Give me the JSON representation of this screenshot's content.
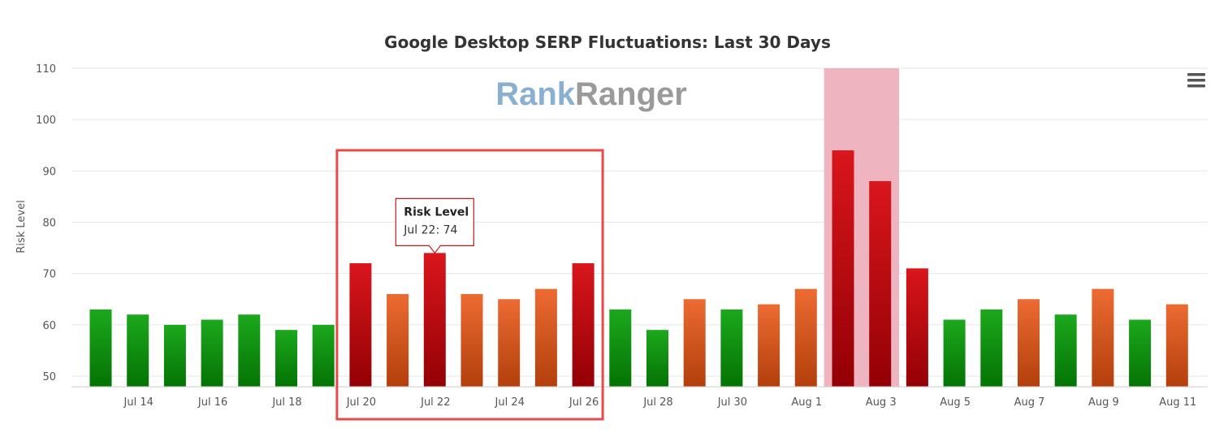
{
  "chart_data": {
    "type": "bar",
    "title": "Google Desktop SERP Fluctuations: Last 30 Days",
    "xlabel": "",
    "ylabel": "Risk Level",
    "ylim": [
      48,
      110
    ],
    "yticks": [
      50,
      60,
      70,
      80,
      90,
      100,
      110
    ],
    "grid": true,
    "categories": [
      "Jul 13",
      "Jul 14",
      "Jul 15",
      "Jul 16",
      "Jul 17",
      "Jul 18",
      "Jul 19",
      "Jul 20",
      "Jul 21",
      "Jul 22",
      "Jul 23",
      "Jul 24",
      "Jul 25",
      "Jul 26",
      "Jul 27",
      "Jul 28",
      "Jul 29",
      "Jul 30",
      "Jul 31",
      "Aug 1",
      "Aug 2",
      "Aug 3",
      "Aug 4",
      "Aug 5",
      "Aug 6",
      "Aug 7",
      "Aug 8",
      "Aug 9",
      "Aug 10",
      "Aug 11"
    ],
    "x_tick_labels": [
      "Jul 14",
      "Jul 16",
      "Jul 18",
      "Jul 20",
      "Jul 22",
      "Jul 24",
      "Jul 26",
      "Jul 28",
      "Jul 30",
      "Aug 1",
      "Aug 3",
      "Aug 5",
      "Aug 7",
      "Aug 9",
      "Aug 11"
    ],
    "values": [
      63,
      62,
      60,
      61,
      62,
      59,
      60,
      72,
      66,
      74,
      66,
      65,
      67,
      72,
      63,
      59,
      65,
      63,
      64,
      67,
      94,
      88,
      71,
      61,
      63,
      65,
      62,
      67,
      61,
      64
    ],
    "series": [
      {
        "name": "Risk Level",
        "values": [
          63,
          62,
          60,
          61,
          62,
          59,
          60,
          72,
          66,
          74,
          66,
          65,
          67,
          72,
          63,
          59,
          65,
          63,
          64,
          67,
          94,
          88,
          71,
          61,
          63,
          65,
          62,
          67,
          61,
          64
        ]
      }
    ],
    "color_levels": {
      "green": {
        "top": "#1ca81c",
        "bottom": "#047304"
      },
      "orange": {
        "top": "#ec6b32",
        "bottom": "#b33f0c"
      },
      "red": {
        "top": "#d9161c",
        "bottom": "#930005"
      }
    },
    "bar_levels": [
      "green",
      "green",
      "green",
      "green",
      "green",
      "green",
      "green",
      "red",
      "orange",
      "red",
      "orange",
      "orange",
      "orange",
      "red",
      "green",
      "green",
      "orange",
      "green",
      "orange",
      "orange",
      "red",
      "red",
      "red",
      "green",
      "green",
      "orange",
      "green",
      "orange",
      "green",
      "orange"
    ],
    "highlight_band": {
      "from": "Aug 2",
      "to": "Aug 3",
      "color": "#eeb4c0"
    },
    "selection_box": {
      "from": "Jul 20",
      "to": "Jul 26",
      "color": "#e84a4a"
    },
    "tooltip": {
      "title": "Risk Level",
      "text": "Jul 22: 74",
      "category": "Jul 22"
    },
    "watermark": {
      "part1": "Rank",
      "part2": "Ranger",
      "color1": "#8ab0d1",
      "color2": "#9a9a9a"
    },
    "menu_icon": "hamburger-menu-icon"
  }
}
